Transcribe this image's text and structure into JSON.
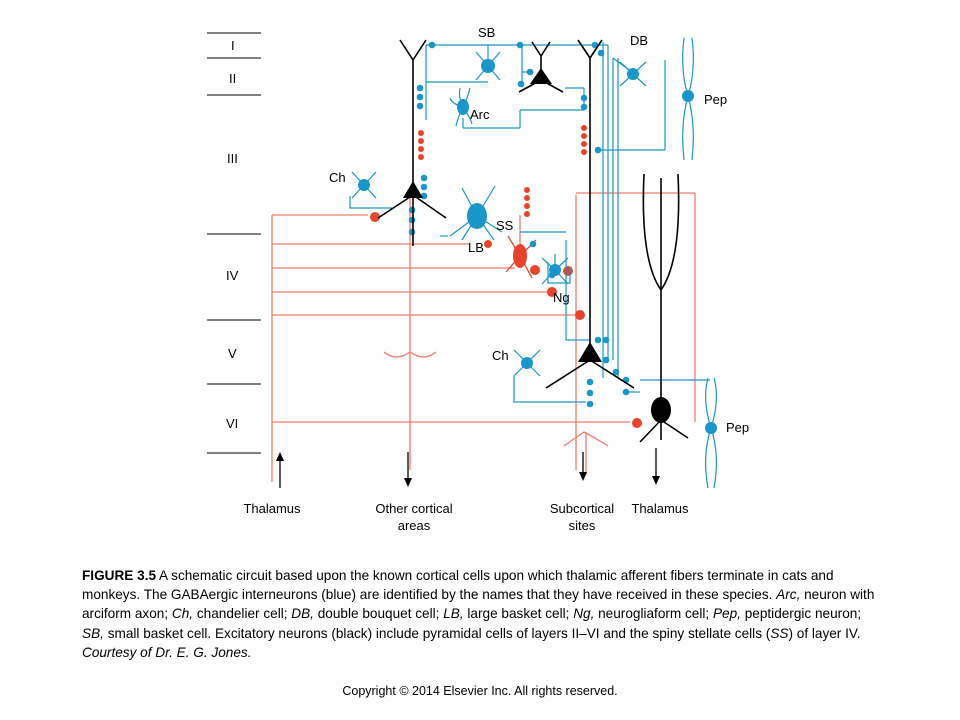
{
  "layers": [
    "I",
    "II",
    "III",
    "IV",
    "V",
    "VI"
  ],
  "cell_labels": {
    "sb": "SB",
    "db": "DB",
    "arc": "Arc",
    "pep_top": "Pep",
    "ch_upper": "Ch",
    "ss": "SS",
    "lb": "LB",
    "ng": "Ng",
    "ch_lower": "Ch",
    "pep_bottom": "Pep"
  },
  "targets": {
    "thalamus_in": "Thalamus",
    "other_cortical_1": "Other cortical",
    "other_cortical_2": "areas",
    "subcortical_1": "Subcortical",
    "subcortical_2": "sites",
    "thalamus_out": "Thalamus"
  },
  "colors": {
    "excitatory": "#000000",
    "gaba": "#1a96c8",
    "thalamic": "#e8442c",
    "thalamic_line": "#f07c6a"
  },
  "caption": {
    "figure": "FIGURE 3.5",
    "s1": " A schematic circuit based upon the known cortical cells upon which thalamic afferent fibers terminate in cats and monkeys. The GABAergic interneurons (blue) are identified by the names that they have received in these species. ",
    "arc": "Arc,",
    "s2": " neuron with arciform axon; ",
    "ch": "Ch,",
    "s3": " chandelier cell; ",
    "db": "DB,",
    "s4": " double bouquet cell; ",
    "lb": "LB,",
    "s5": " large basket cell; ",
    "ng": "Ng,",
    "s6": " neurogliaform cell; ",
    "pep": "Pep,",
    "s7": " peptidergic neuron; ",
    "sb": "SB,",
    "s8": " small basket cell. Excitatory neurons (black) include pyramidal cells of layers II–VI and the spiny stellate cells (",
    "ss": "SS",
    "s9": ") of layer IV. ",
    "courtesy": "Courtesy of Dr. E. G. Jones."
  },
  "copyright": "Copyright © 2014 Elsevier Inc. All rights reserved."
}
